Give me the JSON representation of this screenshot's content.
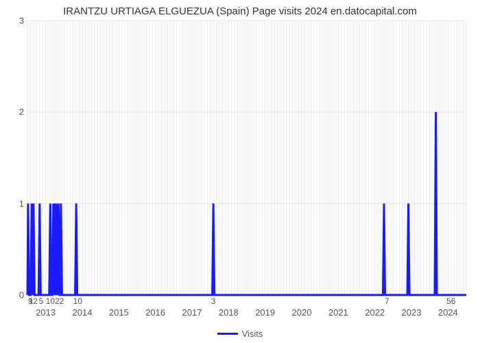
{
  "chart": {
    "type": "line",
    "title": "IRANTZU URTIAGA ELGUEZUA (Spain) Page visits 2024 en.datocapital.com",
    "title_fontsize": 15,
    "title_color": "#333333",
    "background_color": "#ffffff",
    "grid_color": "#e0e0e0",
    "axis_color": "#888888",
    "label_color": "#555555",
    "label_fontsize": 13,
    "ylim": [
      0,
      3
    ],
    "yticks": [
      0,
      1,
      2,
      3
    ],
    "years": [
      2013,
      2014,
      2015,
      2016,
      2017,
      2018,
      2019,
      2020,
      2021,
      2022,
      2023,
      2024
    ],
    "year_ticks_per_year": 12,
    "line_color": "#1a1aff",
    "line_width": 3,
    "legend_label": "Visits",
    "value_labels": [
      {
        "year": 2013,
        "month_approx": 1.0,
        "text": "9"
      },
      {
        "year": 2013,
        "month_approx": 1.9,
        "text": "12"
      },
      {
        "year": 2013,
        "month_approx": 4.5,
        "text": "5"
      },
      {
        "year": 2013,
        "month_approx": 9.0,
        "text": "1022"
      },
      {
        "year": 2014,
        "month_approx": 4.5,
        "text": "10"
      },
      {
        "year": 2018,
        "month_approx": 1.0,
        "text": "3"
      },
      {
        "year": 2022,
        "month_approx": 10.0,
        "text": "7"
      },
      {
        "year": 2024,
        "month_approx": 7.0,
        "text": "56"
      }
    ],
    "spikes": [
      {
        "t": 0.2,
        "v": 1
      },
      {
        "t": 1.4,
        "v": 1
      },
      {
        "t": 2.0,
        "v": 1
      },
      {
        "t": 4.0,
        "v": 1
      },
      {
        "t": 7.5,
        "v": 1
      },
      {
        "t": 8.5,
        "v": 1
      },
      {
        "t": 9.0,
        "v": 1
      },
      {
        "t": 9.5,
        "v": 1
      },
      {
        "t": 10.2,
        "v": 1
      },
      {
        "t": 11.0,
        "v": 1
      },
      {
        "t": 16.0,
        "v": 1
      },
      {
        "t": 61.0,
        "v": 1
      },
      {
        "t": 117.0,
        "v": 1
      },
      {
        "t": 125.0,
        "v": 1
      },
      {
        "t": 134.0,
        "v": 2
      }
    ],
    "total_months": 144
  }
}
